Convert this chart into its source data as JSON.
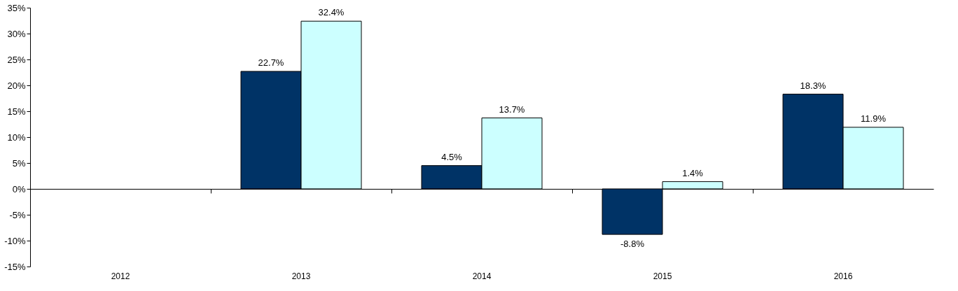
{
  "chart_data": {
    "type": "bar",
    "categories": [
      "2012",
      "2013",
      "2014",
      "2015",
      "2016"
    ],
    "series": [
      {
        "color": "#003366",
        "values": [
          null,
          22.7,
          4.5,
          -8.8,
          18.3
        ],
        "value_labels": [
          null,
          "22.7%",
          "4.5%",
          "-8.8%",
          "18.3%"
        ]
      },
      {
        "color": "#ccffff",
        "values": [
          null,
          32.4,
          13.7,
          1.4,
          11.9
        ],
        "value_labels": [
          null,
          "32.4%",
          "13.7%",
          "1.4%",
          "11.9%"
        ]
      }
    ],
    "ylim": [
      -15,
      35
    ],
    "yticks": [
      {
        "value": -15,
        "label": "-15%"
      },
      {
        "value": -10,
        "label": "-10%"
      },
      {
        "value": -5,
        "label": "-5%"
      },
      {
        "value": 0,
        "label": "0%"
      },
      {
        "value": 5,
        "label": "5%"
      },
      {
        "value": 10,
        "label": "10%"
      },
      {
        "value": 15,
        "label": "15%"
      },
      {
        "value": 20,
        "label": "20%"
      },
      {
        "value": 25,
        "label": "25%"
      },
      {
        "value": 30,
        "label": "30%"
      },
      {
        "value": 35,
        "label": "35%"
      }
    ],
    "legend": false
  }
}
